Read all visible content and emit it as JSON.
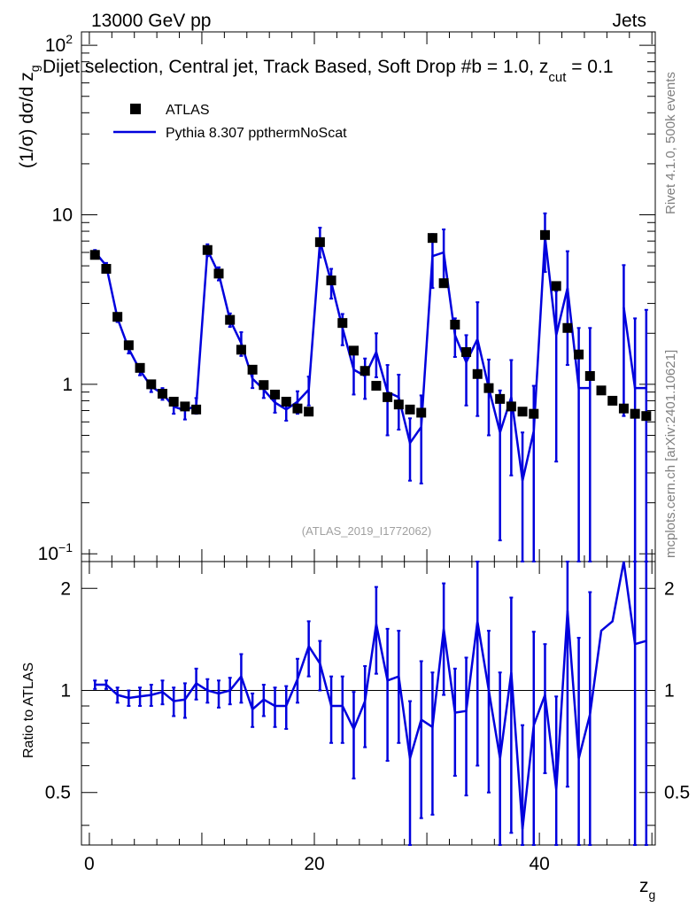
{
  "chart_data": {
    "type": "scatter",
    "header_left": "13000 GeV pp",
    "header_right": "Jets",
    "title": "Dijet selection, Central jet, Track Based, Soft Drop #b = 1.0, z",
    "title_sub": "cut",
    "title_tail": " = 0.1",
    "ylabel_main": "(1/σ) dσ/d z",
    "ylabel_main_sub": "g",
    "ylabel_ratio": "Ratio to ATLAS",
    "xlabel": "z",
    "xlabel_sub": "g",
    "watermark": "(ATLAS_2019_I1772062)",
    "side_text_top": "Rivet 4.1.0,  500k events",
    "side_text_bottom": "mcplots.cern.ch [arXiv:2401.10621]",
    "xlim": [
      -0.7,
      50.3
    ],
    "ylim_main": [
      0.09,
      120
    ],
    "ylim_ratio": [
      0.35,
      2.4
    ],
    "x_ticks": [
      0,
      20,
      40
    ],
    "y_ticks_main": [
      "10^-1",
      "1",
      "10",
      "10^2"
    ],
    "y_ticks_ratio": [
      "0.5",
      "1",
      "2"
    ],
    "x": [
      0.5,
      1.5,
      2.5,
      3.5,
      4.5,
      5.5,
      6.5,
      7.5,
      8.5,
      9.5,
      10.5,
      11.5,
      12.5,
      13.5,
      14.5,
      15.5,
      16.5,
      17.5,
      18.5,
      19.5,
      20.5,
      21.5,
      22.5,
      23.5,
      24.5,
      25.5,
      26.5,
      27.5,
      28.5,
      29.5,
      30.5,
      31.5,
      32.5,
      33.5,
      34.5,
      35.5,
      36.5,
      37.5,
      38.5,
      39.5,
      40.5,
      41.5,
      42.5,
      43.5,
      44.5,
      45.5,
      46.5,
      47.5,
      48.5,
      49.5
    ],
    "series": [
      {
        "name": "ATLAS",
        "color": "#000000",
        "values": [
          5.8,
          4.8,
          2.5,
          1.7,
          1.25,
          1.0,
          0.88,
          0.79,
          0.74,
          0.71,
          6.2,
          4.5,
          2.4,
          1.6,
          1.22,
          0.99,
          0.87,
          0.79,
          0.72,
          0.69,
          6.9,
          4.1,
          2.3,
          1.58,
          1.2,
          0.98,
          0.84,
          0.76,
          0.71,
          0.68,
          7.3,
          3.95,
          2.25,
          1.55,
          1.15,
          0.95,
          0.82,
          0.74,
          0.69,
          0.67,
          7.6,
          3.8,
          2.15,
          1.5,
          1.12,
          0.92,
          0.8,
          0.72,
          0.67,
          0.65
        ]
      },
      {
        "name": "Pythia 8.307 ppthermNoScat",
        "color": "#0000dd",
        "values": [
          6.05,
          5.0,
          2.45,
          1.62,
          1.21,
          0.97,
          0.88,
          0.74,
          0.7,
          0.75,
          6.2,
          4.5,
          2.4,
          1.75,
          1.08,
          0.93,
          0.78,
          0.71,
          0.79,
          0.93,
          7.0,
          4.0,
          2.15,
          1.22,
          1.12,
          1.55,
          0.9,
          0.84,
          0.45,
          0.56,
          5.7,
          6.0,
          1.95,
          1.35,
          1.85,
          0.95,
          0.52,
          0.84,
          0.27,
          0.53,
          7.4,
          1.95,
          3.7,
          0.95,
          0.95,
          null,
          null,
          2.85,
          0.95,
          0.95
        ],
        "errors": [
          0.15,
          0.2,
          0.12,
          0.1,
          0.08,
          0.07,
          0.07,
          0.07,
          0.08,
          0.08,
          0.5,
          0.4,
          0.22,
          0.28,
          0.13,
          0.1,
          0.1,
          0.1,
          0.12,
          0.18,
          1.4,
          0.8,
          0.45,
          0.35,
          0.3,
          0.45,
          0.4,
          0.3,
          0.18,
          0.3,
          2.0,
          2.2,
          0.5,
          0.6,
          1.2,
          0.45,
          0.4,
          0.55,
          0.25,
          0.45,
          2.8,
          1.6,
          2.4,
          1.2,
          1.2,
          null,
          null,
          2.2,
          1.5,
          1.8
        ],
        "ratio": [
          1.04,
          1.04,
          0.97,
          0.95,
          0.96,
          0.97,
          0.99,
          0.93,
          0.94,
          1.05,
          1.0,
          0.98,
          1.0,
          1.1,
          0.88,
          0.94,
          0.9,
          0.9,
          1.08,
          1.35,
          1.2,
          0.9,
          0.9,
          0.77,
          0.93,
          1.57,
          1.07,
          1.1,
          0.63,
          0.82,
          0.78,
          1.52,
          0.86,
          0.87,
          1.6,
          1.0,
          0.63,
          1.13,
          0.39,
          0.79,
          0.97,
          0.51,
          1.72,
          0.63,
          0.85,
          1.5,
          1.6,
          2.5,
          1.37,
          1.4
        ],
        "ratio_errors": [
          0.03,
          0.03,
          0.05,
          0.05,
          0.06,
          0.07,
          0.08,
          0.09,
          0.11,
          0.11,
          0.08,
          0.09,
          0.09,
          0.18,
          0.1,
          0.1,
          0.12,
          0.13,
          0.16,
          0.25,
          0.2,
          0.2,
          0.2,
          0.22,
          0.25,
          0.45,
          0.45,
          0.4,
          0.3,
          0.4,
          0.35,
          0.55,
          0.3,
          0.38,
          1.0,
          0.5,
          0.5,
          0.75,
          0.4,
          0.7,
          0.4,
          0.45,
          1.2,
          0.8,
          1.1,
          null,
          null,
          null,
          1.5,
          1.5
        ]
      }
    ]
  }
}
